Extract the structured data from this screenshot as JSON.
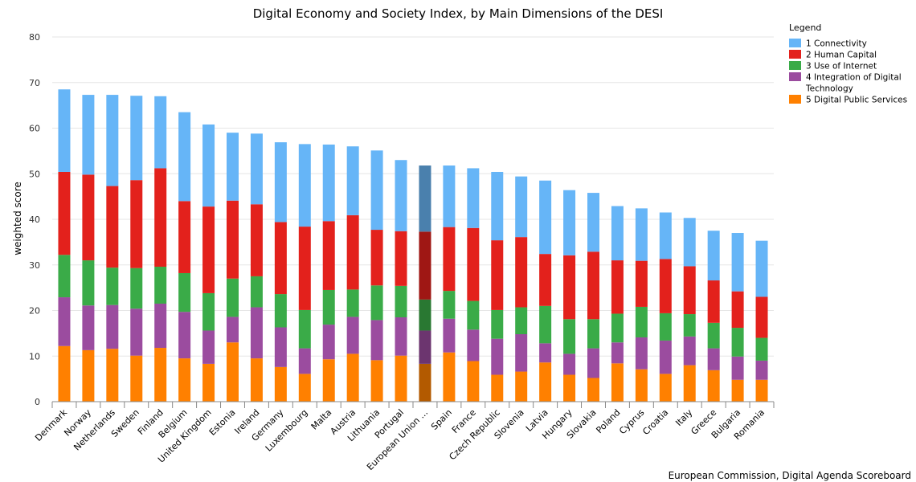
{
  "chart_data": {
    "type": "bar",
    "stacked": true,
    "title": "Digital Economy and Society Index, by Main Dimensions of the DESI",
    "ylabel": "weighted score",
    "xlabel": "",
    "ylim": [
      0,
      80
    ],
    "yticks": [
      0,
      10,
      20,
      30,
      40,
      50,
      60,
      70,
      80
    ],
    "grid": true,
    "legend_title": "Legend",
    "legend_position": "top-right",
    "highlighted_category": "European Union ...",
    "categories": [
      "Denmark",
      "Norway",
      "Netherlands",
      "Sweden",
      "Finland",
      "Belgium",
      "United Kingdom",
      "Estonia",
      "Ireland",
      "Germany",
      "Luxembourg",
      "Malta",
      "Austria",
      "Lithuania",
      "Portugal",
      "European Union ...",
      "Spain",
      "France",
      "Czech Republic",
      "Slovenia",
      "Latvia",
      "Hungary",
      "Slovakia",
      "Poland",
      "Cyprus",
      "Croatia",
      "Italy",
      "Greece",
      "Bulgaria",
      "Romania"
    ],
    "series": [
      {
        "name": "5 Digital Public Services",
        "color": "#ff8000",
        "values": [
          12.2,
          11.3,
          11.6,
          10.1,
          11.8,
          9.5,
          8.3,
          13.0,
          9.5,
          7.6,
          6.1,
          9.3,
          10.5,
          9.1,
          10.1,
          8.3,
          10.8,
          8.9,
          5.9,
          6.6,
          8.6,
          5.9,
          5.2,
          8.4,
          7.1,
          6.1,
          8.0,
          6.9,
          4.8,
          4.8
        ]
      },
      {
        "name": "4 Integration of Digital Technology",
        "color": "#9b4c9f",
        "values": [
          10.7,
          9.8,
          9.6,
          10.3,
          9.7,
          10.2,
          7.3,
          5.6,
          11.2,
          8.7,
          5.6,
          7.6,
          8.1,
          8.8,
          8.4,
          7.3,
          7.4,
          6.9,
          7.9,
          8.2,
          4.2,
          4.6,
          6.5,
          4.6,
          7.0,
          7.3,
          6.3,
          4.8,
          5.1,
          4.2
        ]
      },
      {
        "name": "3 Use of Internet",
        "color": "#3aab48",
        "values": [
          9.3,
          9.9,
          8.2,
          8.9,
          8.1,
          8.5,
          8.2,
          8.4,
          6.8,
          7.3,
          8.4,
          7.6,
          6.0,
          7.6,
          6.9,
          6.8,
          6.1,
          6.3,
          6.3,
          5.9,
          8.2,
          7.6,
          6.4,
          6.3,
          6.7,
          6.0,
          4.9,
          5.6,
          6.3,
          5.0
        ]
      },
      {
        "name": "2 Human Capital",
        "color": "#e3211c",
        "values": [
          18.2,
          18.8,
          17.9,
          19.3,
          21.6,
          15.8,
          19.0,
          17.1,
          15.8,
          15.8,
          18.3,
          15.1,
          16.3,
          12.2,
          12.0,
          14.9,
          14.0,
          16.0,
          15.3,
          15.4,
          11.4,
          14.0,
          14.8,
          11.7,
          10.1,
          11.9,
          10.5,
          9.3,
          8.0,
          9.0
        ]
      },
      {
        "name": "1 Connectivity",
        "color": "#66b5f7",
        "values": [
          18.1,
          17.5,
          20.0,
          18.5,
          15.8,
          19.5,
          18.0,
          14.9,
          15.5,
          17.5,
          18.1,
          16.8,
          15.1,
          17.4,
          15.6,
          14.5,
          13.5,
          13.1,
          15.0,
          13.3,
          16.1,
          14.3,
          12.9,
          11.9,
          11.5,
          10.2,
          10.6,
          10.9,
          12.8,
          12.3
        ]
      }
    ],
    "legend_order": [
      "1 Connectivity",
      "2 Human Capital",
      "3 Use of Internet",
      "4 Integration of Digital Technology",
      "5 Digital Public Services"
    ],
    "legend_lines": {
      "1 Connectivity": [
        "1 Connectivity"
      ],
      "2 Human Capital": [
        "2 Human Capital"
      ],
      "3 Use of Internet": [
        "3 Use of Internet"
      ],
      "4 Integration of Digital Technology": [
        "4 Integration of Digital",
        "Technology"
      ],
      "5 Digital Public Services": [
        "5 Digital Public Services"
      ]
    },
    "highlight_colors": {
      "5 Digital Public Services": "#b35a00",
      "4 Integration of Digital Technology": "#6c356f",
      "3 Use of Internet": "#297832",
      "2 Human Capital": "#9f1714",
      "1 Connectivity": "#4a80ad"
    },
    "grid_color": "#e6e6e6",
    "axis_color": "#888888"
  },
  "footer": {
    "credit": "European Commission, Digital Agenda Scoreboard"
  }
}
